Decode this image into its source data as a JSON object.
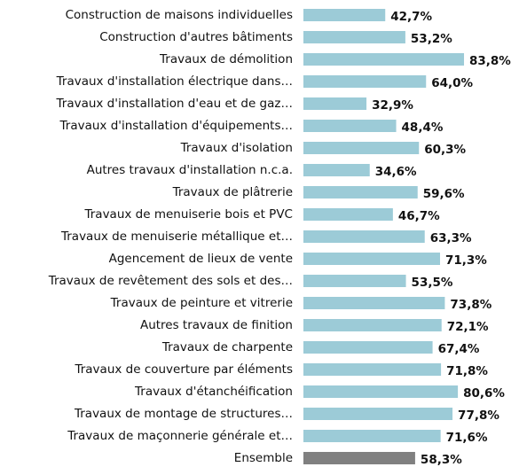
{
  "chart_data": {
    "type": "bar",
    "orientation": "horizontal",
    "categories": [
      "Construction de maisons individuelles",
      "Construction d'autres bâtiments",
      "Travaux de démolition",
      "Travaux d'installation électrique dans…",
      "Travaux d'installation d'eau et de gaz…",
      "Travaux d'installation d'équipements…",
      "Travaux d'isolation",
      "Autres travaux d'installation n.c.a.",
      "Travaux de plâtrerie",
      "Travaux de menuiserie bois et PVC",
      "Travaux de menuiserie métallique et…",
      "Agencement de lieux de vente",
      "Travaux de revêtement des sols et des…",
      "Travaux de peinture et vitrerie",
      "Autres travaux de finition",
      "Travaux de charpente",
      "Travaux de couverture par éléments",
      "Travaux d'étanchéification",
      "Travaux de montage de structures…",
      "Travaux de maçonnerie générale et…",
      "Ensemble"
    ],
    "values": [
      42.7,
      53.2,
      83.8,
      64.0,
      32.9,
      48.4,
      60.3,
      34.6,
      59.6,
      46.7,
      63.3,
      71.3,
      53.5,
      73.8,
      72.1,
      67.4,
      71.8,
      80.6,
      77.8,
      71.6,
      58.3
    ],
    "value_labels": [
      "42,7%",
      "53,2%",
      "83,8%",
      "64,0%",
      "32,9%",
      "48,4%",
      "60,3%",
      "34,6%",
      "59,6%",
      "46,7%",
      "63,3%",
      "71,3%",
      "53,5%",
      "73,8%",
      "72,1%",
      "67,4%",
      "71,8%",
      "80,6%",
      "77,8%",
      "71,6%",
      "58,3%"
    ],
    "colors": [
      "#9ccbd7",
      "#9ccbd7",
      "#9ccbd7",
      "#9ccbd7",
      "#9ccbd7",
      "#9ccbd7",
      "#9ccbd7",
      "#9ccbd7",
      "#9ccbd7",
      "#9ccbd7",
      "#9ccbd7",
      "#9ccbd7",
      "#9ccbd7",
      "#9ccbd7",
      "#9ccbd7",
      "#9ccbd7",
      "#9ccbd7",
      "#9ccbd7",
      "#9ccbd7",
      "#9ccbd7",
      "#808080"
    ]
  }
}
